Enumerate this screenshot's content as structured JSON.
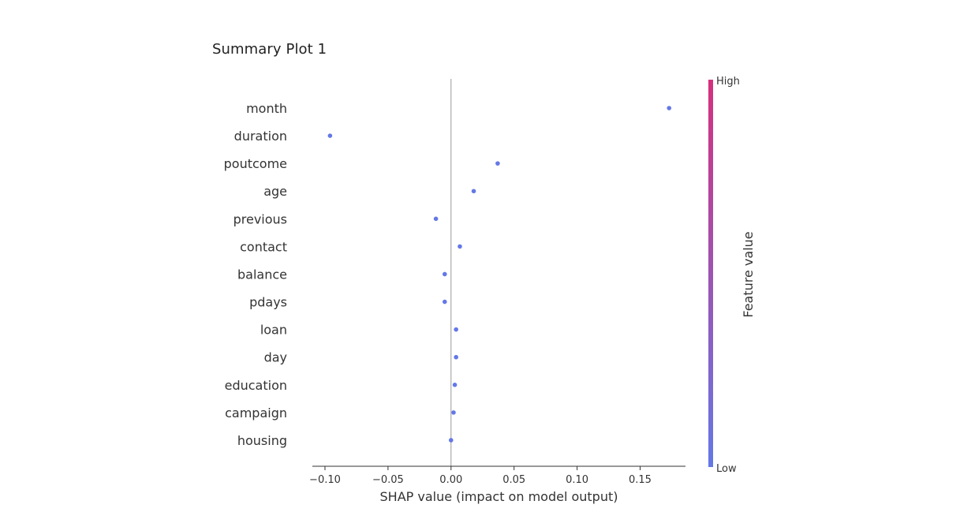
{
  "page": {
    "title": "Summary Plot 1"
  },
  "chart_data": {
    "type": "scatter",
    "title": "",
    "xlabel": "SHAP value (impact on model output)",
    "ylabel": "",
    "xlim": [
      -0.11,
      0.186
    ],
    "x_ticks": [
      -0.1,
      -0.05,
      0.0,
      0.05,
      0.1,
      0.15
    ],
    "x_tick_labels": [
      "−0.10",
      "−0.05",
      "0.00",
      "0.05",
      "0.10",
      "0.15"
    ],
    "features": [
      "month",
      "duration",
      "poutcome",
      "age",
      "previous",
      "contact",
      "balance",
      "pdays",
      "loan",
      "day",
      "education",
      "campaign",
      "housing"
    ],
    "shap_values": [
      0.173,
      -0.096,
      0.037,
      0.018,
      -0.012,
      0.007,
      -0.005,
      -0.005,
      0.004,
      0.004,
      0.003,
      0.002,
      0.0
    ],
    "zero_line": 0,
    "point_color": "#6478e6",
    "colorbar": {
      "title": "Feature value",
      "high_label": "High",
      "low_label": "Low",
      "high_color": "#d6307e",
      "low_color": "#6478e6"
    },
    "grid": false,
    "legend": "colorbar-right"
  }
}
